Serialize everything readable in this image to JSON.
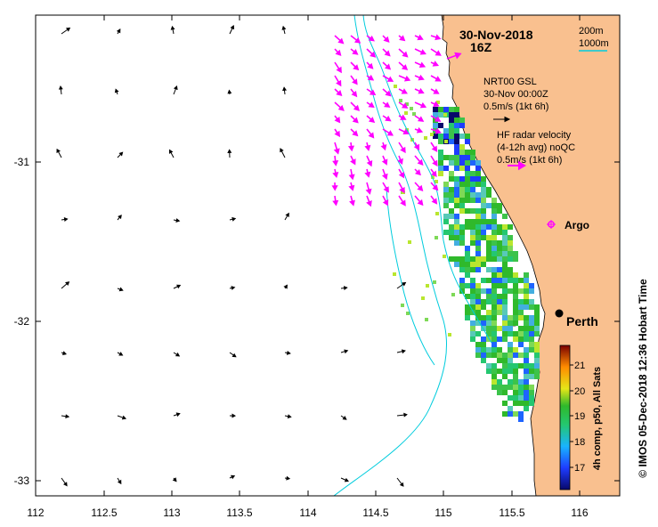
{
  "map": {
    "date": "30-Nov-2018",
    "time": "16Z",
    "x_ticks": [
      "112",
      "112.5",
      "113",
      "113.5",
      "114",
      "114.5",
      "115",
      "115.5",
      "116"
    ],
    "y_ticks": [
      "-31",
      "-32",
      "-33"
    ],
    "depth_legend": [
      "200m",
      "1000m"
    ],
    "model_legend": {
      "line1": "NRT00 GSL",
      "line2": "30-Nov 00:00Z",
      "line3": "0.5m/s (1kt 6h)"
    },
    "radar_legend": {
      "line1": "HF radar velocity",
      "line2": "(4-12h avg) noQC",
      "line3": "0.5m/s (1kt 6h)"
    },
    "argo_label": "Argo",
    "city_label": "Perth",
    "colorbar": {
      "ticks": [
        "21",
        "20",
        "19",
        "18",
        "17"
      ],
      "title": "4h comp, p50, All Sats"
    },
    "credit": "© IMOS 05-Dec-2018 12:36 Hobart Time",
    "colors": {
      "land": "#f9c08f",
      "contour": "#00ccdd",
      "radar_arrow": "#ff00ff",
      "model_arrow": "#000000"
    }
  }
}
